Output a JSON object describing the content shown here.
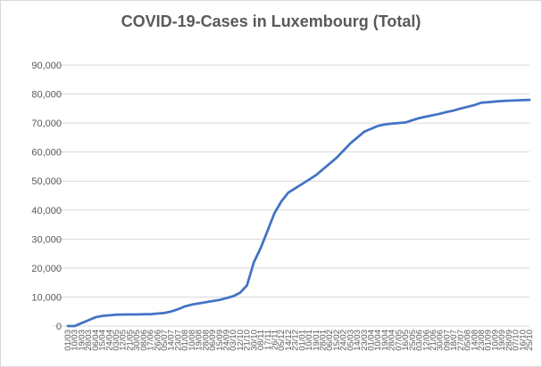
{
  "chart_data": {
    "type": "line",
    "title": "COVID-19-Cases in Luxembourg (Total)",
    "xlabel": "",
    "ylabel": "",
    "ylim": [
      0,
      90000
    ],
    "grid": true,
    "legend": "none",
    "line_color": "#4472C4",
    "y_ticks": [
      "0",
      "10,000",
      "20,000",
      "30,000",
      "40,000",
      "50,000",
      "60,000",
      "70,000",
      "80,000",
      "90,000"
    ],
    "x_ticks": [
      "01/03",
      "10/03",
      "19/03",
      "28/03",
      "06/04",
      "15/04",
      "24/04",
      "03/05",
      "12/05",
      "21/05",
      "30/05",
      "08/06",
      "17/06",
      "26/06",
      "05/07",
      "14/07",
      "23/07",
      "01/08",
      "10/08",
      "19/08",
      "28/08",
      "06/09",
      "15/09",
      "24/09",
      "03/10",
      "12/10",
      "21/10",
      "30/10",
      "08/11",
      "17/11",
      "26/11",
      "05/12",
      "14/12",
      "23/12",
      "01/01",
      "10/01",
      "19/01",
      "28/01",
      "06/02",
      "15/02",
      "24/02",
      "05/03",
      "14/03",
      "23/03",
      "01/04",
      "10/04",
      "19/04",
      "28/04",
      "07/05",
      "16/05",
      "25/05",
      "03/06",
      "12/06",
      "21/06",
      "30/06",
      "09/07",
      "18/07",
      "27/07",
      "05/08",
      "14/08",
      "23/08",
      "01/09",
      "10/09",
      "19/09",
      "28/09",
      "07/10",
      "16/10",
      "25/10"
    ],
    "series": [
      {
        "x": [
          "01/03",
          "10/03",
          "19/03",
          "28/03",
          "06/04",
          "15/04",
          "24/04",
          "03/05",
          "12/05",
          "21/05",
          "30/05",
          "08/06",
          "17/06",
          "26/06",
          "05/07",
          "14/07",
          "23/07",
          "01/08",
          "10/08",
          "19/08",
          "28/08",
          "06/09",
          "15/09",
          "24/09",
          "03/10",
          "12/10",
          "21/10",
          "30/10",
          "08/11",
          "17/11",
          "26/11",
          "05/12",
          "14/12",
          "23/12",
          "01/01",
          "10/01",
          "19/01",
          "28/01",
          "06/02",
          "15/02",
          "24/02",
          "05/03",
          "14/03",
          "23/03",
          "01/04",
          "10/04",
          "19/04",
          "28/04",
          "07/05",
          "16/05",
          "25/05",
          "03/06",
          "12/06",
          "21/06",
          "30/06",
          "09/07",
          "18/07",
          "27/07",
          "05/08",
          "14/08",
          "23/08",
          "01/09",
          "10/09",
          "19/09",
          "28/09",
          "07/10",
          "16/10",
          "25/10"
        ],
        "values": [
          0,
          10,
          1000,
          2000,
          3000,
          3500,
          3700,
          3900,
          3950,
          4000,
          4000,
          4050,
          4100,
          4300,
          4500,
          5000,
          5800,
          6800,
          7400,
          7800,
          8200,
          8600,
          9000,
          9600,
          10300,
          11500,
          14000,
          22000,
          27000,
          33000,
          39000,
          43000,
          46000,
          47500,
          49000,
          50500,
          52000,
          54000,
          56000,
          58000,
          60500,
          63000,
          65000,
          67000,
          68000,
          69000,
          69500,
          69800,
          70000,
          70200,
          71000,
          71700,
          72200,
          72700,
          73200,
          73800,
          74300,
          75000,
          75600,
          76200,
          77000,
          77200,
          77400,
          77600,
          77700,
          77800,
          77900,
          78000
        ]
      }
    ]
  }
}
